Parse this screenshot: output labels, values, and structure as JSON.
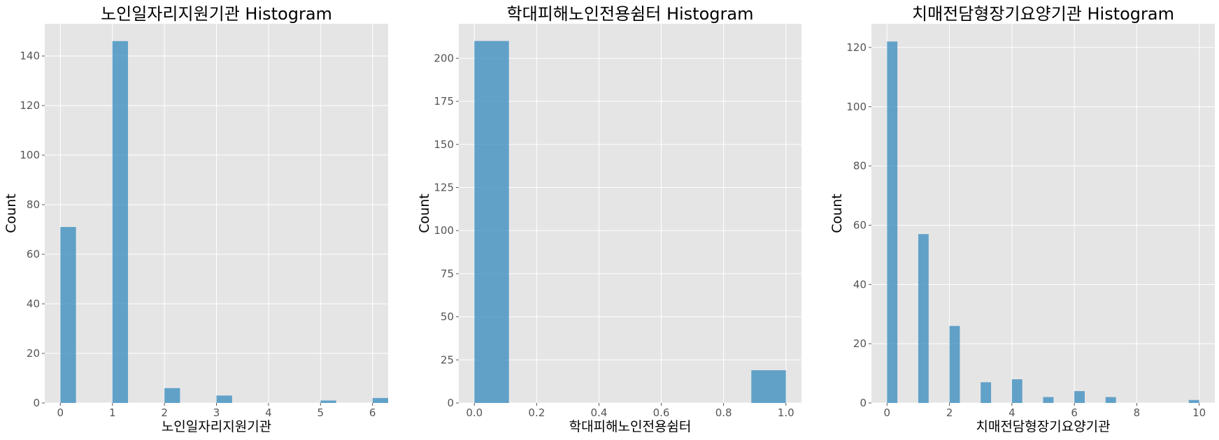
{
  "colors": {
    "plot_background": "#e5e5e5",
    "grid": "#ffffff",
    "bar_fill": "#348abd",
    "bar_alpha": 0.75,
    "text": "#000000",
    "tick_text": "#555555"
  },
  "chart_data": [
    {
      "type": "bar",
      "title": "노인일자리지원기관 Histogram",
      "xlabel": "노인일자리지원기관",
      "ylabel": "Count",
      "grid": true,
      "xlim": [
        -0.3,
        6.3
      ],
      "ylim": [
        0,
        153
      ],
      "xticks": [
        0,
        1,
        2,
        3,
        4,
        5,
        6
      ],
      "yticks": [
        0,
        20,
        40,
        60,
        80,
        100,
        120,
        140
      ],
      "bins": [
        {
          "x0": 0.0,
          "x1": 0.3,
          "count": 71
        },
        {
          "x0": 1.0,
          "x1": 1.3,
          "count": 146
        },
        {
          "x0": 2.0,
          "x1": 2.3,
          "count": 6
        },
        {
          "x0": 3.0,
          "x1": 3.3,
          "count": 3
        },
        {
          "x0": 5.0,
          "x1": 5.3,
          "count": 1
        },
        {
          "x0": 6.0,
          "x1": 6.3,
          "count": 2
        }
      ]
    },
    {
      "type": "bar",
      "title": "학대피해노인전용쉼터 Histogram",
      "xlabel": "학대피해노인전용쉼터",
      "ylabel": "Count",
      "grid": true,
      "xlim": [
        -0.05,
        1.05
      ],
      "ylim": [
        0,
        220
      ],
      "xticks": [
        0.0,
        0.2,
        0.4,
        0.6,
        0.8,
        1.0
      ],
      "xtick_labels": [
        "0.0",
        "0.2",
        "0.4",
        "0.6",
        "0.8",
        "1.0"
      ],
      "yticks": [
        0,
        25,
        50,
        75,
        100,
        125,
        150,
        175,
        200
      ],
      "bins": [
        {
          "x0": 0.0,
          "x1": 0.111,
          "count": 210
        },
        {
          "x0": 0.889,
          "x1": 1.0,
          "count": 19
        }
      ]
    },
    {
      "type": "bar",
      "title": "치매전담형장기요양기관 Histogram",
      "xlabel": "치매전담형장기요양기관",
      "ylabel": "Count",
      "grid": true,
      "xlim": [
        -0.5,
        10.5
      ],
      "ylim": [
        0,
        128
      ],
      "xticks": [
        0,
        2,
        4,
        6,
        8,
        10
      ],
      "yticks": [
        0,
        20,
        40,
        60,
        80,
        100,
        120
      ],
      "bins": [
        {
          "x0": 0.0,
          "x1": 0.333,
          "count": 122
        },
        {
          "x0": 1.0,
          "x1": 1.333,
          "count": 57
        },
        {
          "x0": 2.0,
          "x1": 2.333,
          "count": 26
        },
        {
          "x0": 3.0,
          "x1": 3.333,
          "count": 7
        },
        {
          "x0": 4.0,
          "x1": 4.333,
          "count": 8
        },
        {
          "x0": 5.0,
          "x1": 5.333,
          "count": 2
        },
        {
          "x0": 6.0,
          "x1": 6.333,
          "count": 4
        },
        {
          "x0": 7.0,
          "x1": 7.333,
          "count": 2
        },
        {
          "x0": 9.667,
          "x1": 10.0,
          "count": 1
        }
      ]
    }
  ]
}
